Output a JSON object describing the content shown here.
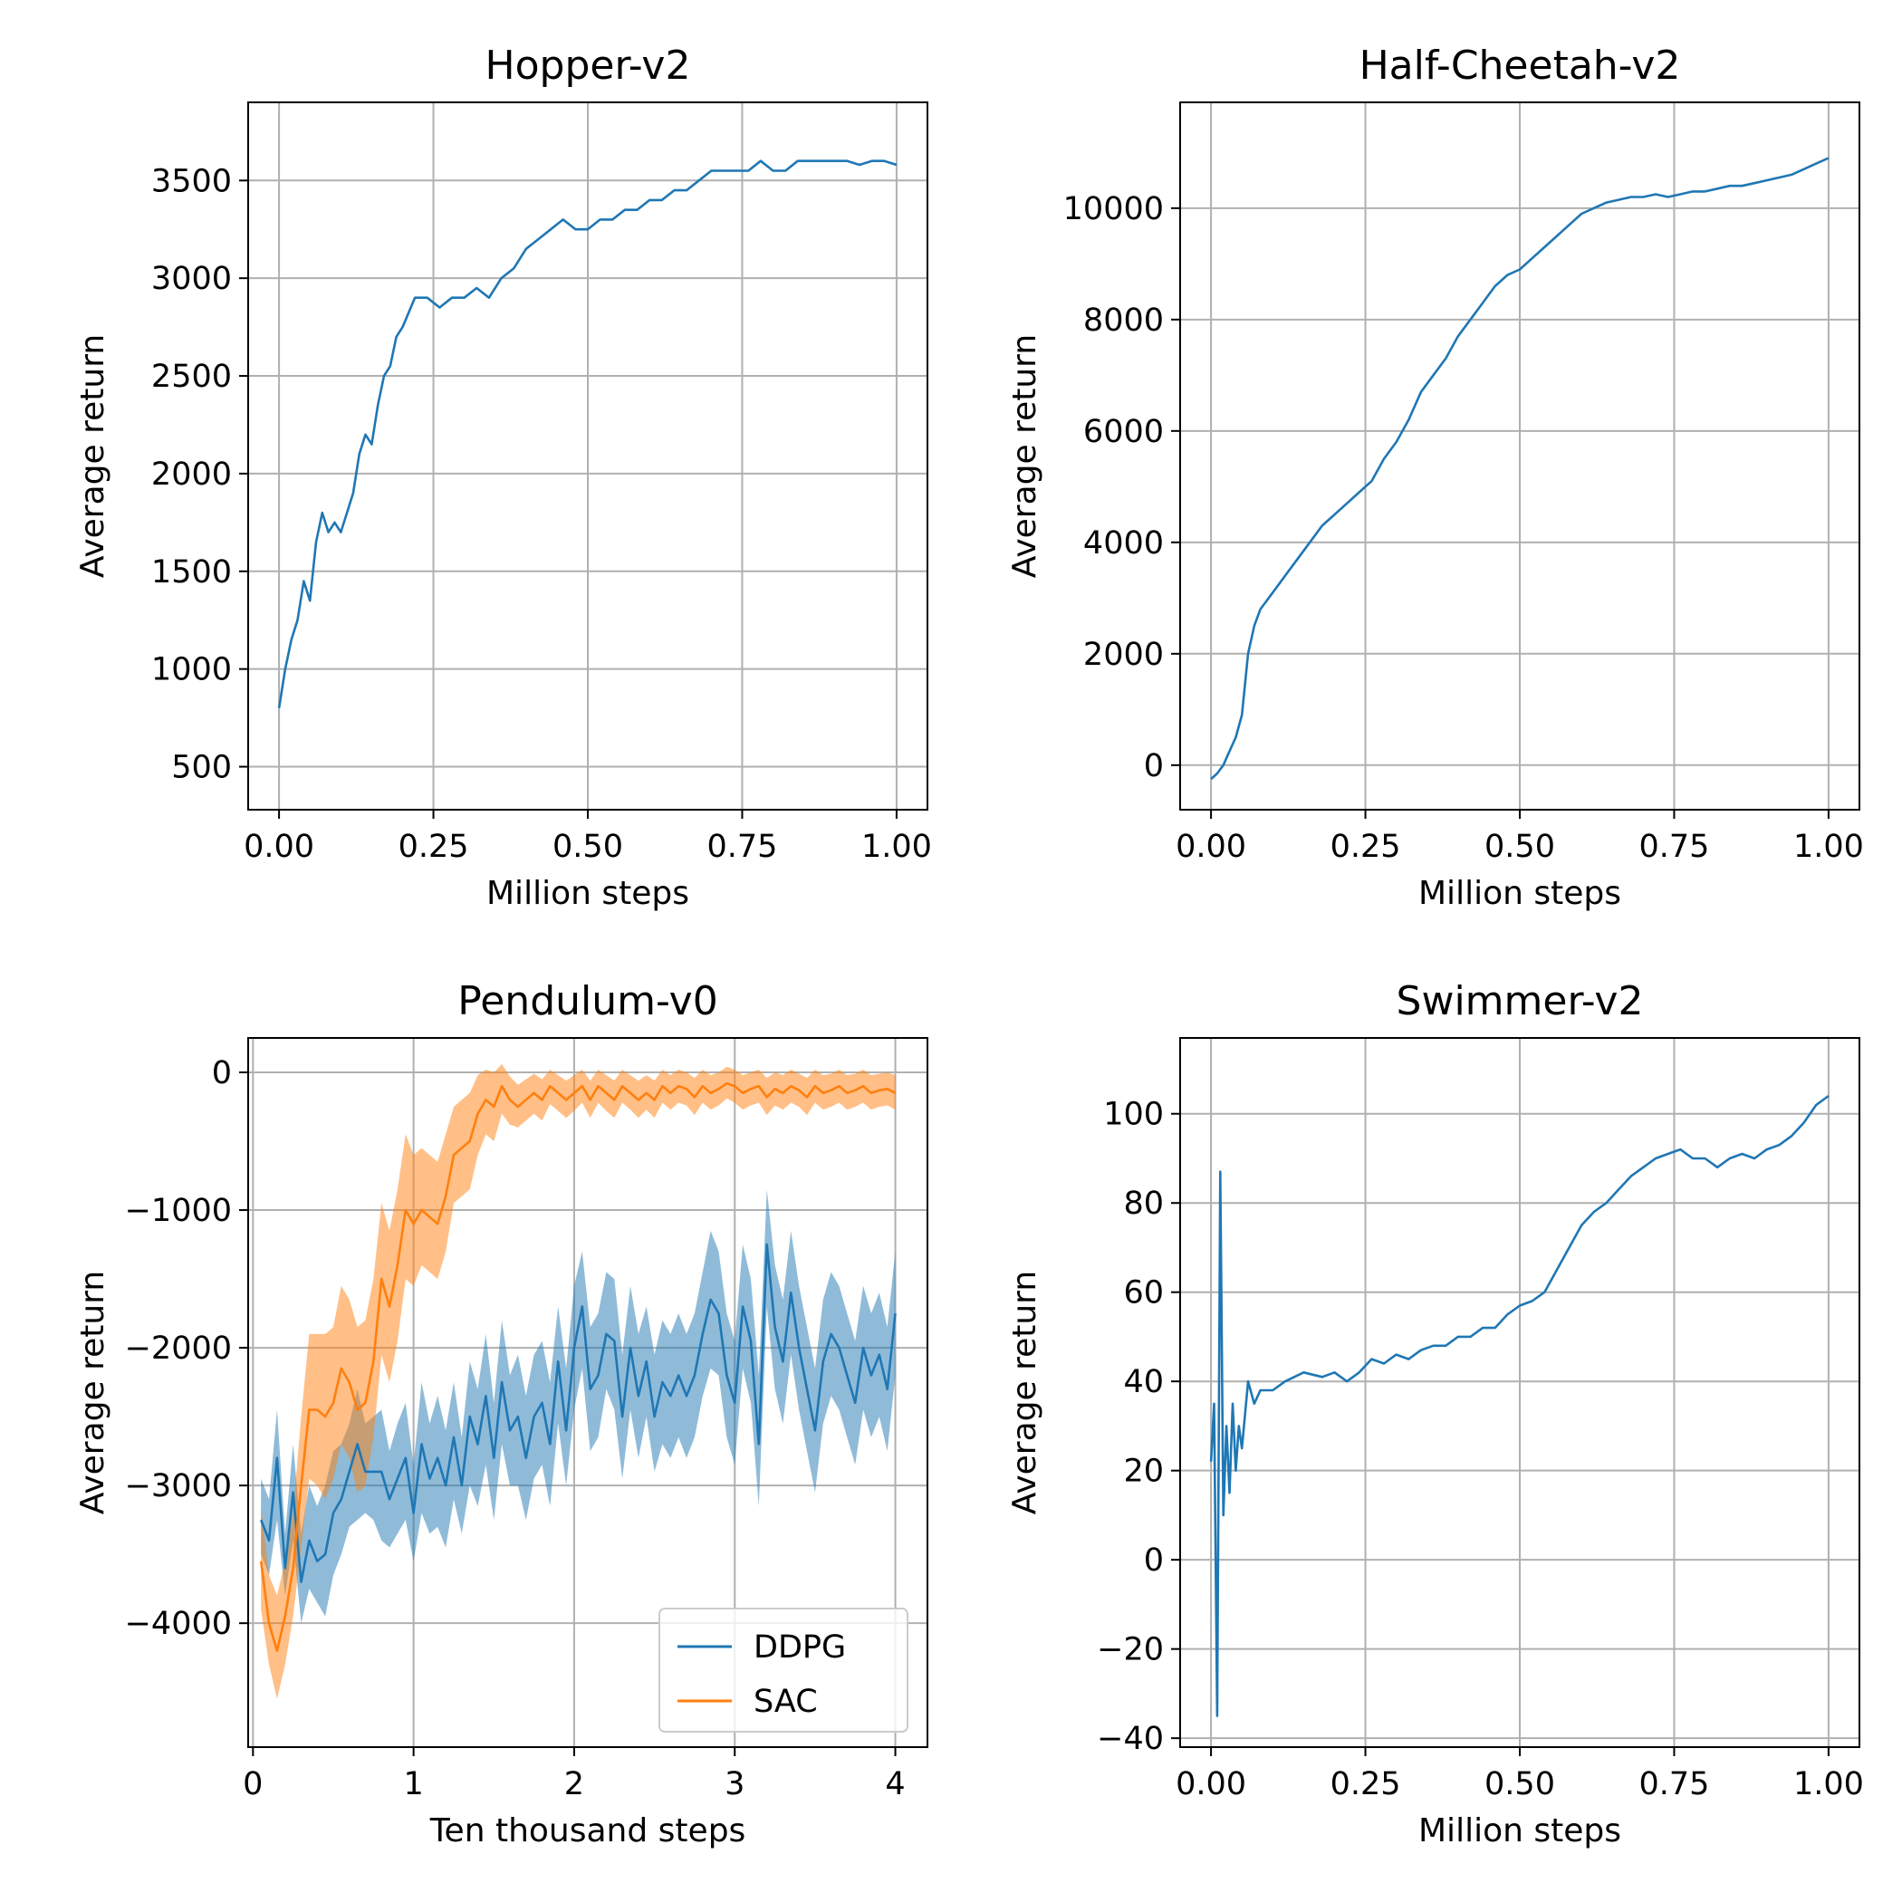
{
  "colors": {
    "ddpg": "#1f77b4",
    "sac": "#ff7f0e",
    "grid": "#b0b0b0"
  },
  "chart_data": [
    {
      "type": "line",
      "title": "Hopper-v2",
      "xlabel": "Million steps",
      "ylabel": "Average return",
      "xlim": [
        -0.05,
        1.05
      ],
      "ylim": [
        280,
        3900
      ],
      "xticks": [
        0.0,
        0.25,
        0.5,
        0.75,
        1.0
      ],
      "xtick_labels": [
        "0.00",
        "0.25",
        "0.50",
        "0.75",
        "1.00"
      ],
      "yticks": [
        500,
        1000,
        1500,
        2000,
        2500,
        3000,
        3500
      ],
      "ytick_labels": [
        "500",
        "1000",
        "1500",
        "2000",
        "2500",
        "3000",
        "3500"
      ],
      "grid": true,
      "series": [
        {
          "x": [
            0.0,
            0.01,
            0.02,
            0.03,
            0.04,
            0.05,
            0.06,
            0.07,
            0.08,
            0.09,
            0.1,
            0.11,
            0.12,
            0.13,
            0.14,
            0.15,
            0.16,
            0.17,
            0.18,
            0.19,
            0.2,
            0.22,
            0.24,
            0.26,
            0.28,
            0.3,
            0.32,
            0.34,
            0.36,
            0.38,
            0.4,
            0.42,
            0.44,
            0.46,
            0.48,
            0.5,
            0.52,
            0.54,
            0.56,
            0.58,
            0.6,
            0.62,
            0.64,
            0.66,
            0.68,
            0.7,
            0.72,
            0.74,
            0.76,
            0.78,
            0.8,
            0.82,
            0.84,
            0.86,
            0.88,
            0.9,
            0.92,
            0.94,
            0.96,
            0.98,
            1.0
          ],
          "y": [
            800,
            1000,
            1150,
            1250,
            1450,
            1350,
            1650,
            1800,
            1700,
            1750,
            1700,
            1800,
            1900,
            2100,
            2200,
            2150,
            2350,
            2500,
            2550,
            2700,
            2750,
            2900,
            2900,
            2850,
            2900,
            2900,
            2950,
            2900,
            3000,
            3050,
            3150,
            3200,
            3250,
            3300,
            3250,
            3250,
            3300,
            3300,
            3350,
            3350,
            3400,
            3400,
            3450,
            3450,
            3500,
            3550,
            3550,
            3550,
            3550,
            3600,
            3550,
            3550,
            3600,
            3600,
            3600,
            3600,
            3600,
            3580,
            3600,
            3600,
            3580
          ]
        }
      ]
    },
    {
      "type": "line",
      "title": "Half-Cheetah-v2",
      "xlabel": "Million steps",
      "ylabel": "Average return",
      "xlim": [
        -0.05,
        1.05
      ],
      "ylim": [
        -800,
        11900
      ],
      "xticks": [
        0.0,
        0.25,
        0.5,
        0.75,
        1.0
      ],
      "xtick_labels": [
        "0.00",
        "0.25",
        "0.50",
        "0.75",
        "1.00"
      ],
      "yticks": [
        0,
        2000,
        4000,
        6000,
        8000,
        10000
      ],
      "ytick_labels": [
        "0",
        "2000",
        "4000",
        "6000",
        "8000",
        "10000"
      ],
      "grid": true,
      "series": [
        {
          "x": [
            0.0,
            0.01,
            0.02,
            0.03,
            0.04,
            0.05,
            0.06,
            0.07,
            0.08,
            0.1,
            0.12,
            0.14,
            0.16,
            0.18,
            0.2,
            0.22,
            0.24,
            0.26,
            0.28,
            0.3,
            0.32,
            0.34,
            0.36,
            0.38,
            0.4,
            0.42,
            0.44,
            0.46,
            0.48,
            0.5,
            0.52,
            0.54,
            0.56,
            0.58,
            0.6,
            0.62,
            0.64,
            0.66,
            0.68,
            0.7,
            0.72,
            0.74,
            0.76,
            0.78,
            0.8,
            0.82,
            0.84,
            0.86,
            0.88,
            0.9,
            0.92,
            0.94,
            0.96,
            0.98,
            1.0
          ],
          "y": [
            -250,
            -150,
            0,
            250,
            500,
            900,
            2000,
            2500,
            2800,
            3100,
            3400,
            3700,
            4000,
            4300,
            4500,
            4700,
            4900,
            5100,
            5500,
            5800,
            6200,
            6700,
            7000,
            7300,
            7700,
            8000,
            8300,
            8600,
            8800,
            8900,
            9100,
            9300,
            9500,
            9700,
            9900,
            10000,
            10100,
            10150,
            10200,
            10200,
            10250,
            10200,
            10250,
            10300,
            10300,
            10350,
            10400,
            10400,
            10450,
            10500,
            10550,
            10600,
            10700,
            10800,
            10900
          ]
        }
      ]
    },
    {
      "type": "line",
      "title": "Pendulum-v0",
      "xlabel": "Ten thousand steps",
      "ylabel": "Average return",
      "xlim": [
        -0.03,
        4.2
      ],
      "ylim": [
        -4900,
        250
      ],
      "xticks": [
        0,
        1,
        2,
        3,
        4
      ],
      "xtick_labels": [
        "0",
        "1",
        "2",
        "3",
        "4"
      ],
      "yticks": [
        0,
        -1000,
        -2000,
        -3000,
        -4000
      ],
      "ytick_labels": [
        "0",
        "−1000",
        "−2000",
        "−3000",
        "−4000"
      ],
      "grid": true,
      "legend": "lower-right",
      "x": [
        0.05,
        0.1,
        0.15,
        0.2,
        0.25,
        0.3,
        0.35,
        0.4,
        0.45,
        0.5,
        0.55,
        0.6,
        0.65,
        0.7,
        0.75,
        0.8,
        0.85,
        0.9,
        0.95,
        1.0,
        1.05,
        1.1,
        1.15,
        1.2,
        1.25,
        1.3,
        1.35,
        1.4,
        1.45,
        1.5,
        1.55,
        1.6,
        1.65,
        1.7,
        1.75,
        1.8,
        1.85,
        1.9,
        1.95,
        2.0,
        2.05,
        2.1,
        2.15,
        2.2,
        2.25,
        2.3,
        2.35,
        2.4,
        2.45,
        2.5,
        2.55,
        2.6,
        2.65,
        2.7,
        2.75,
        2.8,
        2.85,
        2.9,
        2.95,
        3.0,
        3.05,
        3.1,
        3.15,
        3.2,
        3.25,
        3.3,
        3.35,
        3.4,
        3.45,
        3.5,
        3.55,
        3.6,
        3.65,
        3.7,
        3.75,
        3.8,
        3.85,
        3.9,
        3.95,
        4.0
      ],
      "series": [
        {
          "name": "DDPG",
          "color": "#1f77b4",
          "y": [
            -3250,
            -3400,
            -2800,
            -3600,
            -3050,
            -3700,
            -3400,
            -3550,
            -3500,
            -3200,
            -3100,
            -2900,
            -2700,
            -2900,
            -2900,
            -2900,
            -3100,
            -2950,
            -2800,
            -3200,
            -2700,
            -2950,
            -2800,
            -3000,
            -2650,
            -3000,
            -2500,
            -2700,
            -2350,
            -2800,
            -2250,
            -2600,
            -2500,
            -2800,
            -2500,
            -2400,
            -2700,
            -2100,
            -2600,
            -2000,
            -1700,
            -2300,
            -2200,
            -1900,
            -1950,
            -2500,
            -2000,
            -2350,
            -2100,
            -2500,
            -2250,
            -2350,
            -2200,
            -2350,
            -2200,
            -1900,
            -1650,
            -1750,
            -2200,
            -2400,
            -1700,
            -1950,
            -2700,
            -1250,
            -1850,
            -2100,
            -1600,
            -2000,
            -2300,
            -2600,
            -2100,
            -1900,
            -2000,
            -2200,
            -2400,
            -2000,
            -2200,
            -2050,
            -2300,
            -1750
          ],
          "lower": [
            -3500,
            -3650,
            -3250,
            -3800,
            -3400,
            -4000,
            -3750,
            -3850,
            -3950,
            -3650,
            -3500,
            -3300,
            -3250,
            -3200,
            -3250,
            -3400,
            -3450,
            -3350,
            -3250,
            -3550,
            -3200,
            -3350,
            -3300,
            -3450,
            -3100,
            -3350,
            -3000,
            -3150,
            -2850,
            -3250,
            -2700,
            -3000,
            -3000,
            -3250,
            -2950,
            -2850,
            -3150,
            -2550,
            -3000,
            -2450,
            -2150,
            -2750,
            -2650,
            -2300,
            -2450,
            -2950,
            -2450,
            -2800,
            -2500,
            -2900,
            -2700,
            -2800,
            -2650,
            -2800,
            -2650,
            -2350,
            -2150,
            -2200,
            -2650,
            -2850,
            -2150,
            -2400,
            -3150,
            -1700,
            -2300,
            -2550,
            -2050,
            -2450,
            -2750,
            -3050,
            -2550,
            -2350,
            -2450,
            -2650,
            -2850,
            -2450,
            -2650,
            -2500,
            -2750,
            -2200
          ],
          "upper": [
            -2950,
            -3100,
            -2450,
            -3350,
            -2700,
            -3350,
            -3000,
            -3150,
            -3000,
            -2750,
            -2700,
            -2550,
            -2300,
            -2550,
            -2500,
            -2450,
            -2750,
            -2550,
            -2400,
            -2850,
            -2250,
            -2550,
            -2350,
            -2600,
            -2250,
            -2650,
            -2100,
            -2300,
            -1900,
            -2400,
            -1800,
            -2200,
            -2050,
            -2350,
            -2050,
            -1950,
            -2250,
            -1700,
            -2150,
            -1550,
            -1300,
            -1850,
            -1750,
            -1450,
            -1500,
            -2050,
            -1550,
            -1900,
            -1700,
            -2050,
            -1800,
            -1900,
            -1750,
            -1900,
            -1750,
            -1450,
            -1150,
            -1300,
            -1750,
            -1950,
            -1250,
            -1500,
            -2200,
            -850,
            -1400,
            -1650,
            -1150,
            -1550,
            -1850,
            -2150,
            -1650,
            -1450,
            -1550,
            -1750,
            -1950,
            -1550,
            -1750,
            -1600,
            -1850,
            -1300
          ]
        },
        {
          "name": "SAC",
          "color": "#ff7f0e",
          "y": [
            -3550,
            -4000,
            -4200,
            -3950,
            -3600,
            -3000,
            -2450,
            -2450,
            -2500,
            -2400,
            -2150,
            -2250,
            -2450,
            -2400,
            -2100,
            -1500,
            -1700,
            -1400,
            -1000,
            -1100,
            -1000,
            -1050,
            -1100,
            -900,
            -600,
            -550,
            -500,
            -300,
            -200,
            -250,
            -100,
            -200,
            -250,
            -200,
            -150,
            -200,
            -100,
            -150,
            -200,
            -150,
            -100,
            -200,
            -100,
            -150,
            -200,
            -100,
            -150,
            -200,
            -150,
            -200,
            -100,
            -150,
            -100,
            -120,
            -180,
            -100,
            -150,
            -120,
            -80,
            -100,
            -150,
            -120,
            -100,
            -180,
            -120,
            -150,
            -100,
            -130,
            -180,
            -100,
            -150,
            -130,
            -100,
            -150,
            -130,
            -100,
            -150,
            -130,
            -120,
            -150
          ],
          "lower": [
            -3900,
            -4300,
            -4550,
            -4300,
            -3950,
            -3450,
            -2950,
            -3000,
            -3100,
            -2950,
            -2700,
            -2800,
            -3050,
            -3000,
            -2650,
            -2050,
            -2250,
            -1950,
            -1500,
            -1550,
            -1400,
            -1450,
            -1500,
            -1300,
            -950,
            -900,
            -850,
            -600,
            -450,
            -500,
            -300,
            -380,
            -400,
            -350,
            -300,
            -350,
            -230,
            -280,
            -330,
            -280,
            -220,
            -330,
            -220,
            -280,
            -330,
            -220,
            -270,
            -330,
            -270,
            -330,
            -220,
            -270,
            -220,
            -240,
            -310,
            -220,
            -270,
            -240,
            -190,
            -220,
            -270,
            -240,
            -220,
            -310,
            -240,
            -270,
            -220,
            -250,
            -310,
            -220,
            -270,
            -250,
            -220,
            -270,
            -250,
            -220,
            -270,
            -250,
            -240,
            -270
          ],
          "upper": [
            -3150,
            -3650,
            -3800,
            -3550,
            -3200,
            -2500,
            -1900,
            -1900,
            -1900,
            -1850,
            -1550,
            -1650,
            -1850,
            -1800,
            -1500,
            -950,
            -1150,
            -850,
            -450,
            -600,
            -550,
            -600,
            -650,
            -450,
            -250,
            -200,
            -150,
            -20,
            20,
            0,
            60,
            -30,
            -90,
            -50,
            -10,
            -50,
            20,
            -20,
            -60,
            -20,
            20,
            -60,
            20,
            -20,
            -60,
            20,
            -20,
            -60,
            -20,
            -60,
            20,
            -20,
            20,
            0,
            -40,
            20,
            -20,
            0,
            40,
            20,
            -20,
            0,
            20,
            -40,
            0,
            -20,
            20,
            -10,
            -40,
            20,
            -20,
            -10,
            20,
            -20,
            -10,
            20,
            -20,
            -10,
            0,
            -20
          ]
        }
      ]
    },
    {
      "type": "line",
      "title": "Swimmer-v2",
      "xlabel": "Million steps",
      "ylabel": "Average return",
      "xlim": [
        -0.05,
        1.05
      ],
      "ylim": [
        -42,
        117
      ],
      "xticks": [
        0.0,
        0.25,
        0.5,
        0.75,
        1.0
      ],
      "xtick_labels": [
        "0.00",
        "0.25",
        "0.50",
        "0.75",
        "1.00"
      ],
      "yticks": [
        -40,
        -20,
        0,
        20,
        40,
        60,
        80,
        100
      ],
      "ytick_labels": [
        "−40",
        "−20",
        "0",
        "20",
        "40",
        "60",
        "80",
        "100"
      ],
      "grid": true,
      "series": [
        {
          "x": [
            0.0,
            0.005,
            0.01,
            0.015,
            0.02,
            0.025,
            0.03,
            0.035,
            0.04,
            0.045,
            0.05,
            0.06,
            0.07,
            0.08,
            0.1,
            0.12,
            0.15,
            0.18,
            0.2,
            0.22,
            0.24,
            0.26,
            0.28,
            0.3,
            0.32,
            0.34,
            0.36,
            0.38,
            0.4,
            0.42,
            0.44,
            0.46,
            0.48,
            0.5,
            0.52,
            0.54,
            0.56,
            0.58,
            0.6,
            0.62,
            0.64,
            0.66,
            0.68,
            0.7,
            0.72,
            0.74,
            0.76,
            0.78,
            0.8,
            0.82,
            0.84,
            0.86,
            0.88,
            0.9,
            0.92,
            0.94,
            0.96,
            0.98,
            1.0
          ],
          "y": [
            22,
            35,
            -35,
            87,
            10,
            30,
            15,
            35,
            20,
            30,
            25,
            40,
            35,
            38,
            38,
            40,
            42,
            41,
            42,
            40,
            42,
            45,
            44,
            46,
            45,
            47,
            48,
            48,
            50,
            50,
            52,
            52,
            55,
            57,
            58,
            60,
            65,
            70,
            75,
            78,
            80,
            83,
            86,
            88,
            90,
            91,
            92,
            90,
            90,
            88,
            90,
            91,
            90,
            92,
            93,
            95,
            98,
            102,
            104
          ]
        }
      ]
    }
  ]
}
